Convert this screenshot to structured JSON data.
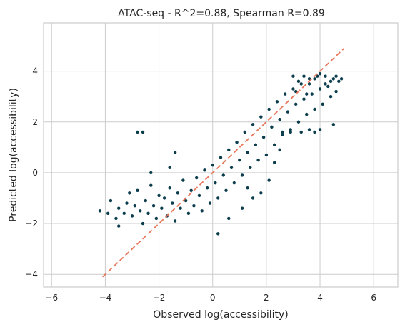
{
  "chart_data": {
    "type": "scatter",
    "title": "ATAC-seq - R^2=0.88, Spearman R=0.89",
    "xlabel": "Observed log(accessibility)",
    "ylabel": "Predicted log(accessibility)",
    "xlim": [
      -6.3,
      6.9
    ],
    "ylim": [
      -4.5,
      5.9
    ],
    "xticks": [
      -6,
      -4,
      -2,
      0,
      2,
      4,
      6
    ],
    "yticks": [
      -4,
      -2,
      0,
      2,
      4
    ],
    "grid": true,
    "point_color": "#0b3d4c",
    "identity_line": {
      "x": [
        -4.1,
        4.9
      ],
      "y": [
        -4.1,
        4.9
      ],
      "color": "#e8775a",
      "style": "dashed"
    },
    "points": [
      [
        -4.2,
        -1.5
      ],
      [
        -3.9,
        -1.6
      ],
      [
        -3.8,
        -1.1
      ],
      [
        -3.6,
        -1.8
      ],
      [
        -3.5,
        -1.4
      ],
      [
        -3.5,
        -2.1
      ],
      [
        -3.3,
        -1.6
      ],
      [
        -3.2,
        -1.2
      ],
      [
        -3.1,
        -0.8
      ],
      [
        -3.0,
        -1.7
      ],
      [
        -2.9,
        -1.3
      ],
      [
        -2.8,
        -0.7
      ],
      [
        -2.7,
        -1.5
      ],
      [
        -2.6,
        -2.0
      ],
      [
        -2.5,
        -1.1
      ],
      [
        -2.4,
        -1.6
      ],
      [
        -2.3,
        -0.5
      ],
      [
        -2.2,
        -1.3
      ],
      [
        -2.1,
        -1.8
      ],
      [
        -2.0,
        -0.9
      ],
      [
        -1.9,
        -1.4
      ],
      [
        -1.8,
        -1.0
      ],
      [
        -1.7,
        -1.7
      ],
      [
        -1.6,
        -0.6
      ],
      [
        -1.5,
        -1.2
      ],
      [
        -1.4,
        -1.9
      ],
      [
        -1.3,
        -0.8
      ],
      [
        -1.2,
        -1.4
      ],
      [
        -1.1,
        -0.3
      ],
      [
        -1.0,
        -1.1
      ],
      [
        -0.9,
        -1.6
      ],
      [
        -0.8,
        -0.7
      ],
      [
        -0.7,
        -1.3
      ],
      [
        -0.6,
        -0.2
      ],
      [
        -0.5,
        -0.9
      ],
      [
        -0.4,
        -1.5
      ],
      [
        -0.3,
        0.1
      ],
      [
        -0.2,
        -0.6
      ],
      [
        -0.1,
        -1.2
      ],
      [
        0.0,
        0.3
      ],
      [
        0.1,
        -0.4
      ],
      [
        0.2,
        -1.0
      ],
      [
        0.3,
        0.6
      ],
      [
        0.4,
        -0.1
      ],
      [
        0.5,
        -0.7
      ],
      [
        0.6,
        0.9
      ],
      [
        0.7,
        0.2
      ],
      [
        0.8,
        -0.4
      ],
      [
        -2.8,
        1.6
      ],
      [
        -2.6,
        1.6
      ],
      [
        -1.4,
        0.8
      ],
      [
        -1.6,
        0.2
      ],
      [
        -2.3,
        0.0
      ],
      [
        0.2,
        -2.4
      ],
      [
        0.9,
        1.2
      ],
      [
        1.0,
        0.5
      ],
      [
        1.1,
        -0.1
      ],
      [
        1.2,
        1.6
      ],
      [
        1.3,
        0.8
      ],
      [
        1.4,
        0.2
      ],
      [
        1.5,
        1.9
      ],
      [
        1.6,
        1.1
      ],
      [
        1.7,
        0.5
      ],
      [
        1.8,
        2.2
      ],
      [
        1.9,
        1.4
      ],
      [
        2.0,
        0.7
      ],
      [
        1.3,
        -0.6
      ],
      [
        1.5,
        -1.0
      ],
      [
        1.8,
        -0.8
      ],
      [
        2.1,
        -0.3
      ],
      [
        1.1,
        -1.4
      ],
      [
        0.6,
        -1.8
      ],
      [
        2.1,
        2.5
      ],
      [
        2.2,
        1.8
      ],
      [
        2.3,
        1.1
      ],
      [
        2.4,
        2.8
      ],
      [
        2.5,
        2.1
      ],
      [
        2.6,
        1.5
      ],
      [
        2.7,
        3.1
      ],
      [
        2.8,
        2.4
      ],
      [
        2.9,
        1.7
      ],
      [
        3.0,
        3.3
      ],
      [
        3.1,
        2.7
      ],
      [
        3.2,
        2.0
      ],
      [
        3.3,
        3.5
      ],
      [
        3.4,
        2.9
      ],
      [
        3.5,
        2.3
      ],
      [
        3.6,
        3.7
      ],
      [
        3.7,
        3.1
      ],
      [
        3.8,
        2.5
      ],
      [
        3.9,
        3.8
      ],
      [
        4.0,
        3.3
      ],
      [
        4.1,
        2.7
      ],
      [
        4.2,
        3.8
      ],
      [
        4.3,
        3.4
      ],
      [
        4.4,
        3.0
      ],
      [
        4.5,
        3.7
      ],
      [
        4.6,
        3.2
      ],
      [
        4.7,
        3.6
      ],
      [
        3.8,
        1.6
      ],
      [
        4.0,
        1.7
      ],
      [
        4.5,
        1.9
      ],
      [
        2.6,
        1.6
      ],
      [
        2.9,
        1.6
      ],
      [
        3.3,
        1.6
      ],
      [
        3.6,
        1.7
      ],
      [
        2.3,
        0.4
      ],
      [
        2.5,
        0.9
      ],
      [
        3.0,
        3.8
      ],
      [
        3.2,
        3.6
      ],
      [
        3.4,
        3.8
      ],
      [
        3.6,
        3.5
      ],
      [
        3.8,
        3.7
      ],
      [
        4.0,
        3.9
      ],
      [
        4.2,
        3.5
      ],
      [
        4.4,
        3.6
      ],
      [
        4.6,
        3.8
      ],
      [
        4.8,
        3.7
      ],
      [
        3.1,
        3.2
      ],
      [
        3.5,
        3.1
      ]
    ]
  }
}
